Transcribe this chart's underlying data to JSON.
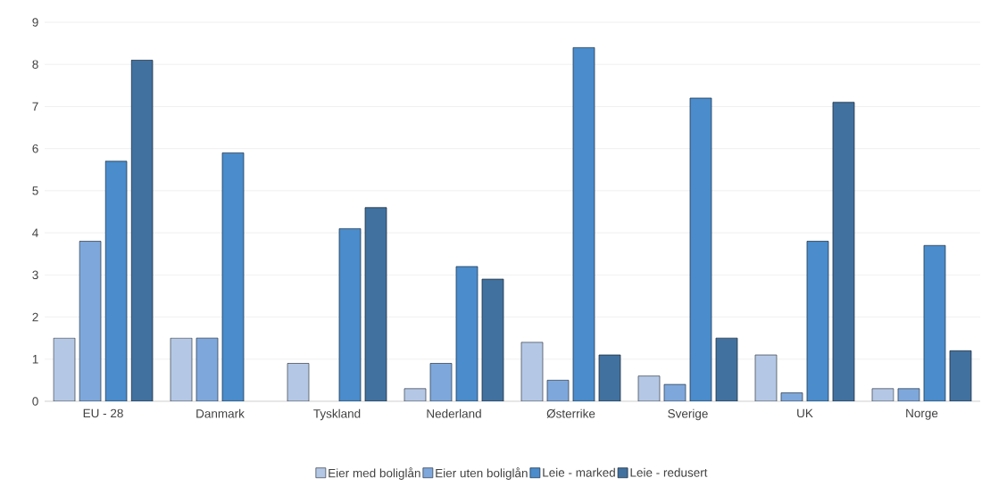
{
  "chart_data": {
    "type": "bar",
    "categories": [
      "EU - 28",
      "Danmark",
      "Tyskland",
      "Nederland",
      "Østerrike",
      "Sverige",
      "UK",
      "Norge"
    ],
    "series": [
      {
        "name": "Eier med boliglån",
        "color": "#b4c8e6",
        "values": [
          1.5,
          1.5,
          0.9,
          0.3,
          1.4,
          0.6,
          1.1,
          0.3
        ]
      },
      {
        "name": "Eier uten boliglån",
        "color": "#7ea8dc",
        "values": [
          3.8,
          1.5,
          null,
          0.9,
          0.5,
          0.4,
          0.2,
          0.3
        ]
      },
      {
        "name": "Leie - marked",
        "color": "#4a8ccc",
        "values": [
          5.7,
          5.9,
          4.1,
          3.2,
          8.4,
          7.2,
          3.8,
          3.7
        ]
      },
      {
        "name": "Leie - redusert",
        "color": "#41719f",
        "values": [
          8.1,
          null,
          4.6,
          2.9,
          1.1,
          1.5,
          7.1,
          1.2
        ]
      }
    ],
    "ylim": [
      0,
      9
    ],
    "yticks": [
      0,
      1,
      2,
      3,
      4,
      5,
      6,
      7,
      8,
      9
    ],
    "grid": "y",
    "legend": "bottom"
  }
}
